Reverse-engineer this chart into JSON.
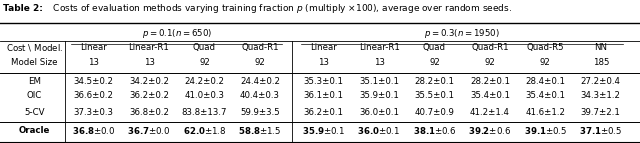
{
  "title_bold": "Table 2:",
  "title_rest": " Costs of evaluation methods varying training fraction $p$ (multiply ×100), average over random seeds.",
  "p01_header": "$p=0.1$($n=650$)",
  "p03_header": "$p=0.3$($n=1950$)",
  "col_header_row1": [
    "Linear",
    "Linear-R1",
    "Quad",
    "Quad-R1",
    "Linear",
    "Linear-R1",
    "Quad",
    "Quad-R1",
    "Quad-R5",
    "NN"
  ],
  "col_header_row2": [
    "13",
    "13",
    "92",
    "92",
    "13",
    "13",
    "92",
    "92",
    "92",
    "185"
  ],
  "row_label_col1": "Cost \\ Model.",
  "row_label_col2": "Model Size",
  "row_names": [
    "EM",
    "OIC",
    "5-CV",
    "Oracle"
  ],
  "data": {
    "EM": [
      "34.5±0.2",
      "34.2±0.2",
      "24.2±0.2",
      "24.4±0.2",
      "35.3±0.1",
      "35.1±0.1",
      "28.2±0.1",
      "28.2±0.1",
      "28.4±0.1",
      "27.2±0.4"
    ],
    "OIC": [
      "36.6±0.2",
      "36.2±0.2",
      "41.0±0.3",
      "40.4±0.3",
      "36.1±0.1",
      "35.9±0.1",
      "35.5±0.1",
      "35.4±0.1",
      "35.4±0.1",
      "34.3±1.2"
    ],
    "5-CV": [
      "37.3±0.3",
      "36.8±0.2",
      "83.8±13.7",
      "59.9±3.5",
      "36.2±0.1",
      "36.0±0.1",
      "40.7±0.9",
      "41.2±1.4",
      "41.6±1.2",
      "39.7±2.1"
    ],
    "Oracle": [
      "36.8±0.0",
      "36.7±0.0",
      "62.0±1.8",
      "58.8±1.5",
      "35.9±0.1",
      "36.0±0.1",
      "38.1±0.6",
      "39.2±0.6",
      "39.1±0.5",
      "37.1±0.5"
    ]
  },
  "oracle_bold_values": [
    "36.8",
    "36.7",
    "62.0",
    "58.8",
    "35.9",
    "36.0",
    "38.1",
    "39.2",
    "39.1",
    "37.1"
  ],
  "oracle_pm_values": [
    "0.0",
    "0.0",
    "1.8",
    "1.5",
    "0.1",
    "0.1",
    "0.6",
    "0.6",
    "0.5",
    "0.5"
  ],
  "figsize": [
    6.4,
    1.43
  ],
  "dpi": 100
}
